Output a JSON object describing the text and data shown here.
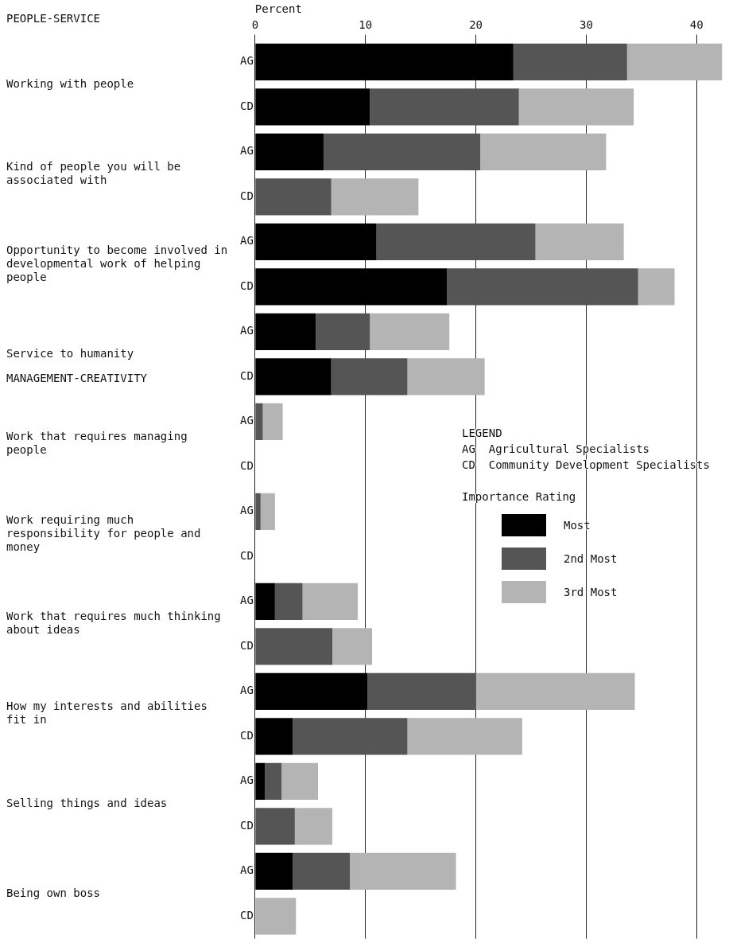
{
  "chart_data": {
    "type": "bar",
    "orientation": "horizontal",
    "stacked": true,
    "xlabel": "Percent",
    "legend_title": "Importance Rating",
    "legend": "right",
    "categories": [
      "AG",
      "CD",
      "AG",
      "CD",
      "AG",
      "CD",
      "AG",
      "CD",
      "AG",
      "CD",
      "AG",
      "CD",
      "AG",
      "CD",
      "AG",
      "CD",
      "AG",
      "CD",
      "AG",
      "CD"
    ],
    "series": [
      {
        "name": "Most",
        "color": "#000000",
        "values": [
          23.4,
          10.4,
          6.2,
          0,
          11.0,
          17.4,
          5.5,
          6.9,
          0,
          0,
          0,
          0,
          1.8,
          0,
          10.2,
          3.4,
          0.9,
          0,
          3.4,
          0
        ]
      },
      {
        "name": "2nd Most",
        "color": "#555555",
        "values": [
          10.3,
          13.5,
          14.2,
          6.9,
          14.4,
          17.3,
          4.9,
          6.9,
          0.7,
          0,
          0.5,
          0,
          2.5,
          7.0,
          9.8,
          10.4,
          1.5,
          3.6,
          5.2,
          0
        ]
      },
      {
        "name": "3rd Most",
        "color": "#b4b4b4",
        "values": [
          8.6,
          10.4,
          11.4,
          7.9,
          8.0,
          3.3,
          7.2,
          7.0,
          1.8,
          0,
          1.3,
          0,
          5.0,
          3.6,
          14.4,
          10.4,
          3.3,
          3.4,
          9.6,
          3.7
        ]
      }
    ],
    "xlim": [
      0,
      42.5
    ],
    "xticks": [
      0,
      10,
      20,
      30,
      40
    ],
    "grid": "x",
    "annotations": [
      "PEOPLE-SERVICE",
      "Working with people",
      "Kind of people you will be associated with",
      "Opportunity to become involved in developmental work of helping people",
      "Service to humanity",
      "MANAGEMENT-CREATIVITY",
      "Work that requires managing people",
      "Work requiring much responsibility for people and money",
      "Work that requires much thinking about ideas",
      "How my interests and abilities fit in",
      "Selling things and ideas",
      "Being own boss",
      "LEGEND",
      "AG  Agricultural Specialists",
      "CD  Community Development Specialists"
    ]
  }
}
